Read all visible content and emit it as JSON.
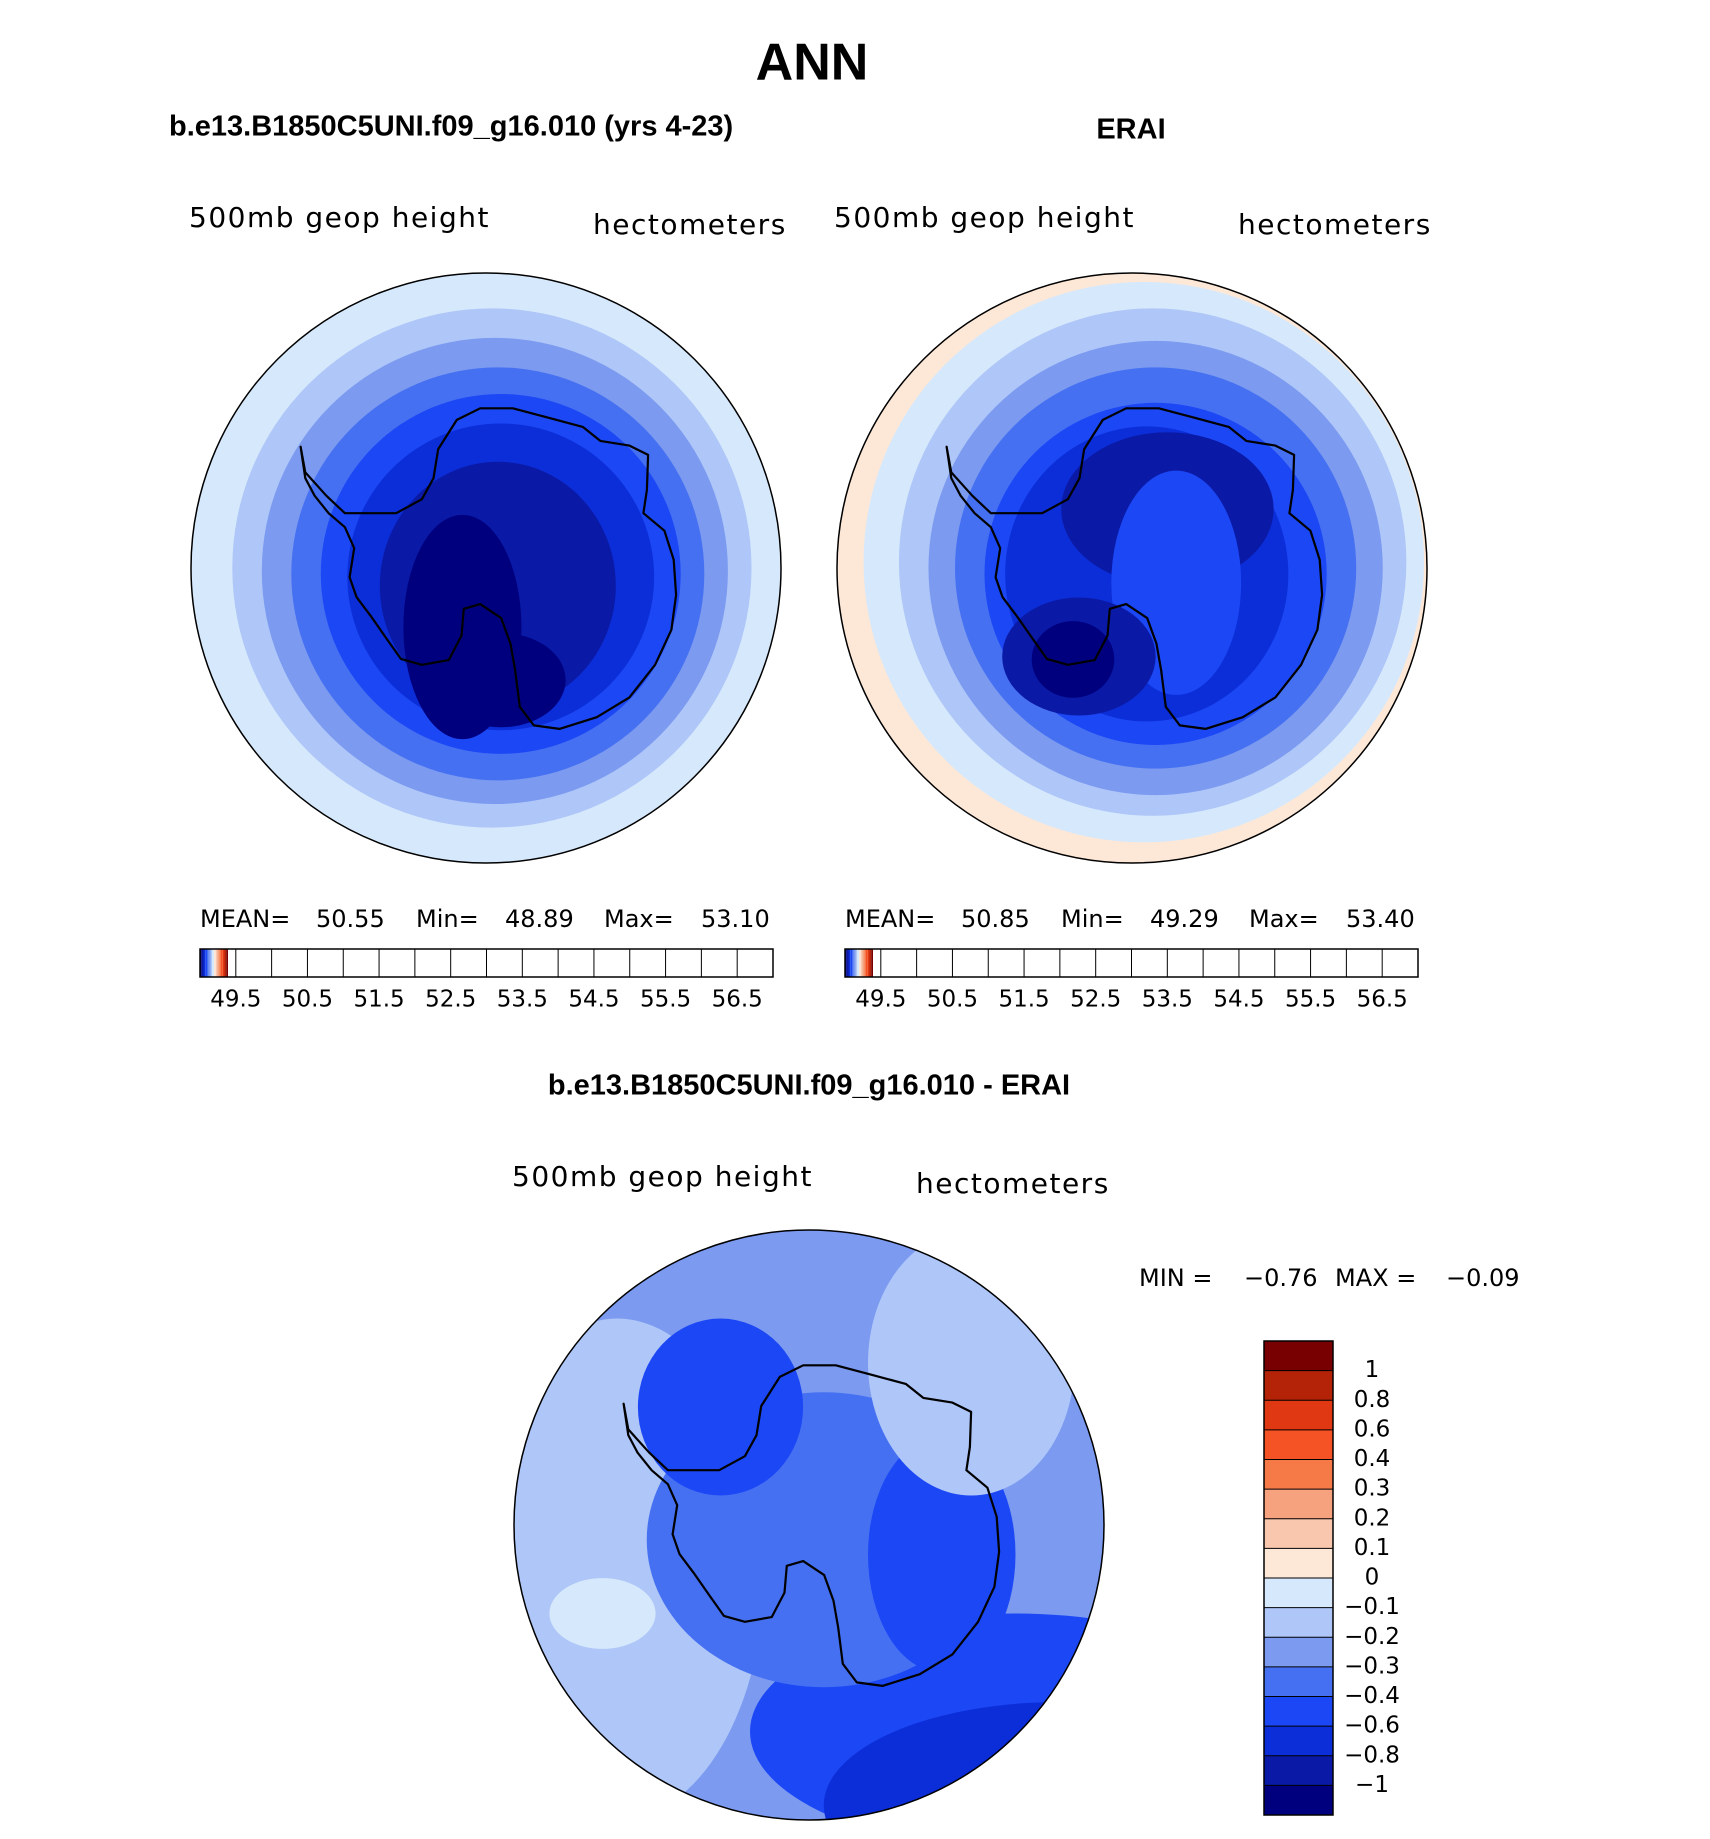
{
  "title": "ANN",
  "chart_data": [
    {
      "type": "polar-contour",
      "title": "b.e13.B1850C5UNI.f09_g16.010 (yrs 4-23)",
      "field": "500mb geop height",
      "units": "hectometers",
      "stats": {
        "names": [
          "MEAN=",
          "Min=",
          "Max="
        ],
        "values": [
          50.55,
          48.89,
          {
            "value": 53.1,
            "label": "53.10"
          }
        ]
      },
      "levels": [
        49.5,
        50,
        50.5,
        51,
        51.5,
        52,
        52.5,
        53,
        53.5,
        54,
        54.5,
        55,
        55.5,
        56,
        56.5
      ],
      "colors": [
        "#00007f",
        "#0a1aa6",
        "#0c2ed8",
        "#1c47f5",
        "#4670f2",
        "#7b9af0",
        "#aec6f8",
        "#d6e8fb",
        "#fde8d8",
        "#f9c6ae",
        "#f7a27f",
        "#f67a48",
        "#f55326",
        "#df3812",
        "#b42208",
        "#780000"
      ]
    },
    {
      "type": "polar-contour",
      "title": "ERAI",
      "field": "500mb geop height",
      "units": "hectometers",
      "stats": {
        "names": [
          "MEAN=",
          "Min=",
          "Max="
        ],
        "values": [
          50.85,
          49.29,
          {
            "value": 53.4,
            "label": "53.40"
          }
        ]
      },
      "levels": [
        49.5,
        50,
        50.5,
        51,
        51.5,
        52,
        52.5,
        53,
        53.5,
        54,
        54.5,
        55,
        55.5,
        56,
        56.5
      ],
      "colors": [
        "#00007f",
        "#0a1aa6",
        "#0c2ed8",
        "#1c47f5",
        "#4670f2",
        "#7b9af0",
        "#aec6f8",
        "#d6e8fb",
        "#fde8d8",
        "#f9c6ae",
        "#f7a27f",
        "#f67a48",
        "#f55326",
        "#df3812",
        "#b42208",
        "#780000"
      ]
    },
    {
      "type": "polar-contour",
      "title": "b.e13.B1850C5UNI.f09_g16.010 - ERAI",
      "field": "500mb geop height",
      "units": "hectometers",
      "stats": {
        "names": [
          "MIN =",
          "MAX ="
        ],
        "values": [
          {
            "value": -0.76,
            "label": "−0.76"
          },
          {
            "value": -0.09,
            "label": "−0.09"
          }
        ]
      },
      "levels": [
        {
          "value": -1,
          "label": "−1"
        },
        {
          "value": -0.8,
          "label": "−0.8"
        },
        {
          "value": -0.6,
          "label": "−0.6"
        },
        {
          "value": -0.4,
          "label": "−0.4"
        },
        {
          "value": -0.3,
          "label": "−0.3"
        },
        {
          "value": -0.2,
          "label": "−0.2"
        },
        {
          "value": -0.1,
          "label": "−0.1"
        },
        0,
        0.1,
        0.2,
        0.3,
        0.4,
        0.6,
        0.8,
        1
      ],
      "colors": [
        "#00007f",
        "#0a1aa6",
        "#0c2ed8",
        "#1c47f5",
        "#4670f2",
        "#7b9af0",
        "#aec6f8",
        "#d6e8fb",
        "#fde8d8",
        "#f9c6ae",
        "#f7a27f",
        "#f67a48",
        "#f55326",
        "#df3812",
        "#b42208",
        "#780000"
      ]
    }
  ]
}
